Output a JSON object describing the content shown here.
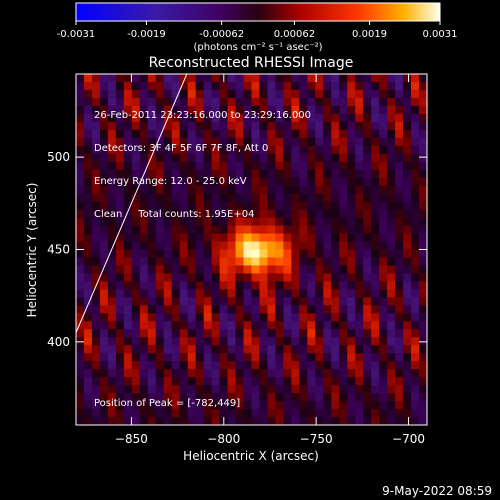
{
  "chart_data": {
    "type": "heatmap",
    "title": "Reconstructed RHESSI Image",
    "xlabel": "Heliocentric X (arcsec)",
    "ylabel": "Heliocentric Y (arcsec)",
    "xlim": [
      -880,
      -690
    ],
    "ylim": [
      355,
      545
    ],
    "x_ticks": [
      -850,
      -800,
      -750,
      -700
    ],
    "y_ticks": [
      400,
      450,
      500
    ],
    "colorbar": {
      "ticks": [
        -0.0031,
        -0.0019,
        -0.00062,
        0.00062,
        0.0019,
        0.0031
      ],
      "tick_labels": [
        "-0.0031",
        "-0.0019",
        "-0.00062",
        "0.00062",
        "0.0019",
        "0.0031"
      ],
      "range": [
        -0.0031,
        0.0031
      ],
      "units": "(photons cm⁻² s⁻¹ asec⁻²)"
    },
    "peak": {
      "x": -782,
      "y": 449
    },
    "limb_line": {
      "x": [
        -880,
        -820
      ],
      "y": [
        405,
        545
      ]
    },
    "info_lines": [
      "26-Feb-2011 23:23:16.000 to 23:29:16.000",
      "Detectors: 3F 4F 5F 6F 7F 8F, Att 0",
      "Energy Range: 12.0 - 25.0 keV",
      "Clean     Total counts: 1.95E+04"
    ],
    "peak_label": "Position of Peak = [-782,449]"
  },
  "footer": {
    "timestamp": "9-May-2022 08:59"
  },
  "colors": {
    "background": "#000000",
    "axes": "#ffffff"
  }
}
